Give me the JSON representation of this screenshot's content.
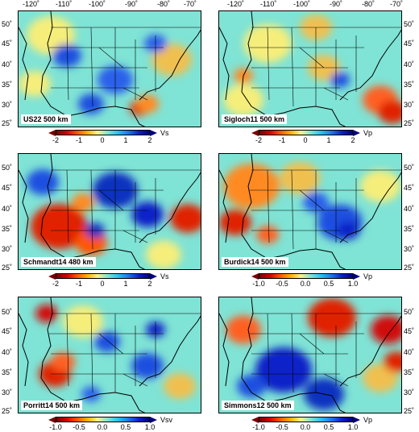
{
  "lon_labels": [
    "-120˚",
    "-110˚",
    "-100˚",
    "-90˚",
    "-80˚",
    "-70˚"
  ],
  "lat_labels": [
    "50˚",
    "45˚",
    "40˚",
    "35˚",
    "30˚",
    "25˚"
  ],
  "panels": [
    {
      "label": "US22 500 km",
      "cbar_ticks": [
        "-2",
        "-1",
        "0",
        "1",
        "2"
      ],
      "unit": "Vs",
      "theme": "us22"
    },
    {
      "label": "Sigloch11 500 km",
      "cbar_ticks": [
        "-2",
        "-1",
        "0",
        "1",
        "2"
      ],
      "unit": "Vp",
      "theme": "sig"
    },
    {
      "label": "Schmandt14 480 km",
      "cbar_ticks": [
        "-2",
        "-1",
        "0",
        "1",
        "2"
      ],
      "unit": "Vs",
      "theme": "sch"
    },
    {
      "label": "Burdick14 500 km",
      "cbar_ticks": [
        "-1.0",
        "-0.5",
        "0.0",
        "0.5",
        "1.0"
      ],
      "unit": "Vp",
      "theme": "bur"
    },
    {
      "label": "Porritt14 500 km",
      "cbar_ticks": [
        "-1.0",
        "-0.5",
        "0.0",
        "0.5",
        "1.0"
      ],
      "unit": "Vsv",
      "theme": "por"
    },
    {
      "label": "Simmons12 500 km",
      "cbar_ticks": [
        "-1.0",
        "-0.5",
        "0.0",
        "0.5",
        "1.0"
      ],
      "unit": "Vp",
      "theme": "sim"
    }
  ],
  "colors": {
    "background_anomaly": "#7fe3d5",
    "fast": "#1d4fe0",
    "slow": "#e02000",
    "neutral": "#f8f28a"
  }
}
